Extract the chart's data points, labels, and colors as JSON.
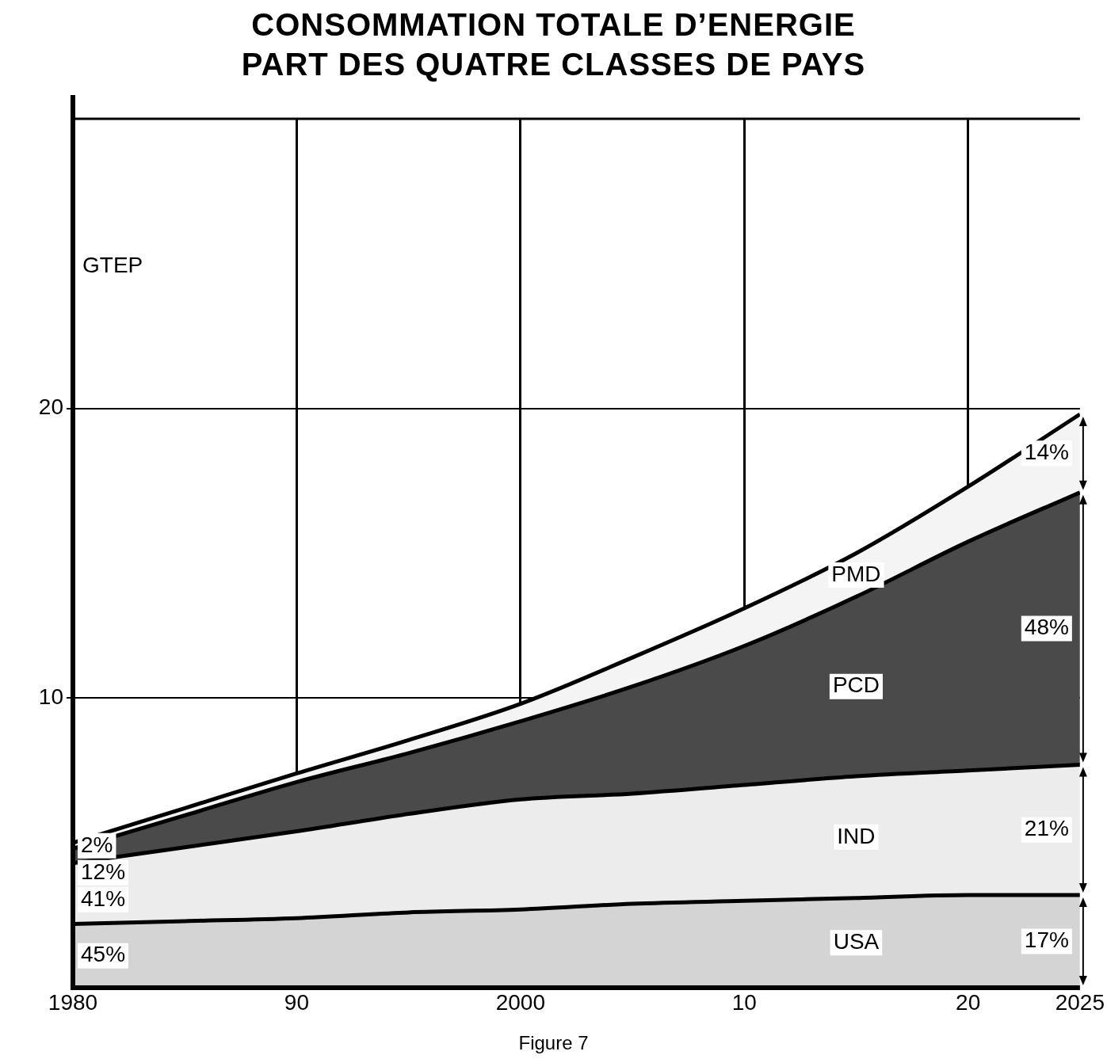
{
  "chart_data": {
    "type": "area",
    "stacked": true,
    "title": "CONSOMMATION TOTALE D’ENERGIE\nPART DES QUATRE CLASSES DE PAYS",
    "ylabel": "GTEP",
    "x": [
      1980,
      1985,
      1990,
      1995,
      2000,
      2005,
      2010,
      2015,
      2020,
      2025
    ],
    "series": [
      {
        "name": "USA",
        "color": "#d4d4d4",
        "values": [
          2.2,
          2.3,
          2.4,
          2.6,
          2.7,
          2.9,
          3.0,
          3.1,
          3.2,
          3.2
        ]
      },
      {
        "name": "IND",
        "color": "#ececec",
        "values": [
          2.1,
          2.55,
          3.0,
          3.4,
          3.8,
          3.8,
          4.0,
          4.2,
          4.3,
          4.5
        ]
      },
      {
        "name": "PCD",
        "color": "#4a4a4a",
        "values": [
          0.5,
          1.1,
          1.7,
          2.1,
          2.7,
          3.7,
          4.8,
          6.2,
          7.9,
          9.4
        ]
      },
      {
        "name": "PMD",
        "color": "#f4f4f4",
        "values": [
          0.2,
          0.25,
          0.3,
          0.45,
          0.6,
          1.0,
          1.3,
          1.5,
          1.9,
          2.7
        ]
      }
    ],
    "xlim": [
      1980,
      2025
    ],
    "xticks": [
      1980,
      {
        "value": 1990,
        "label": "90"
      },
      2000,
      {
        "value": 2010,
        "label": "10"
      },
      {
        "value": 2020,
        "label": "20"
      },
      2025
    ],
    "ylim": [
      0,
      30
    ],
    "yticks": [
      10,
      20
    ],
    "grid": true,
    "annotations": [
      "2%",
      "12%",
      "41%",
      "45%",
      "14%",
      "48%",
      "21%",
      "17%",
      "Figure 7"
    ]
  }
}
